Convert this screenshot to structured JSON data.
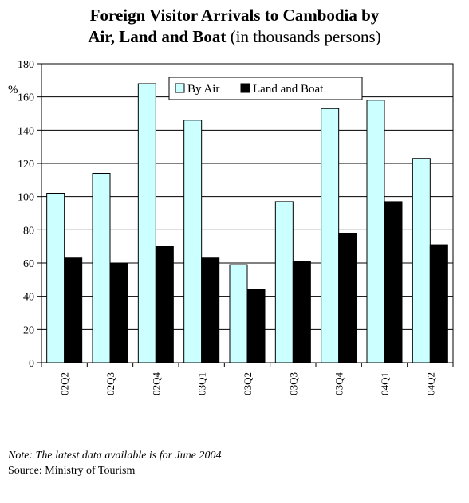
{
  "title": {
    "line1": "Foreign Visitor Arrivals to Cambodia by",
    "line2_bold": "Air, Land and Boat",
    "line2_normal": " (in thousands persons)"
  },
  "axis_stray_text": "%",
  "note": "Note: The latest data available is for June 2004",
  "source": "Source: Ministry of Tourism",
  "colors": {
    "by_air": "#ccffff",
    "land_and_boat": "#000000"
  },
  "chart_data": {
    "type": "bar",
    "title": "Foreign Visitor Arrivals to Cambodia by Air, Land and Boat (in thousands persons)",
    "categories": [
      "02Q2",
      "02Q3",
      "02Q4",
      "03Q1",
      "03Q2",
      "03Q3",
      "03Q4",
      "04Q1",
      "04Q2"
    ],
    "series": [
      {
        "name": "By Air",
        "values": [
          102,
          114,
          168,
          146,
          59,
          97,
          153,
          158,
          123
        ]
      },
      {
        "name": "Land and Boat",
        "values": [
          63,
          60,
          70,
          63,
          44,
          61,
          78,
          97,
          71
        ]
      }
    ],
    "ylim": [
      0,
      180
    ],
    "yticks": [
      0,
      20,
      40,
      60,
      80,
      100,
      120,
      140,
      160,
      180
    ],
    "grid": true,
    "legend": "top-right"
  }
}
